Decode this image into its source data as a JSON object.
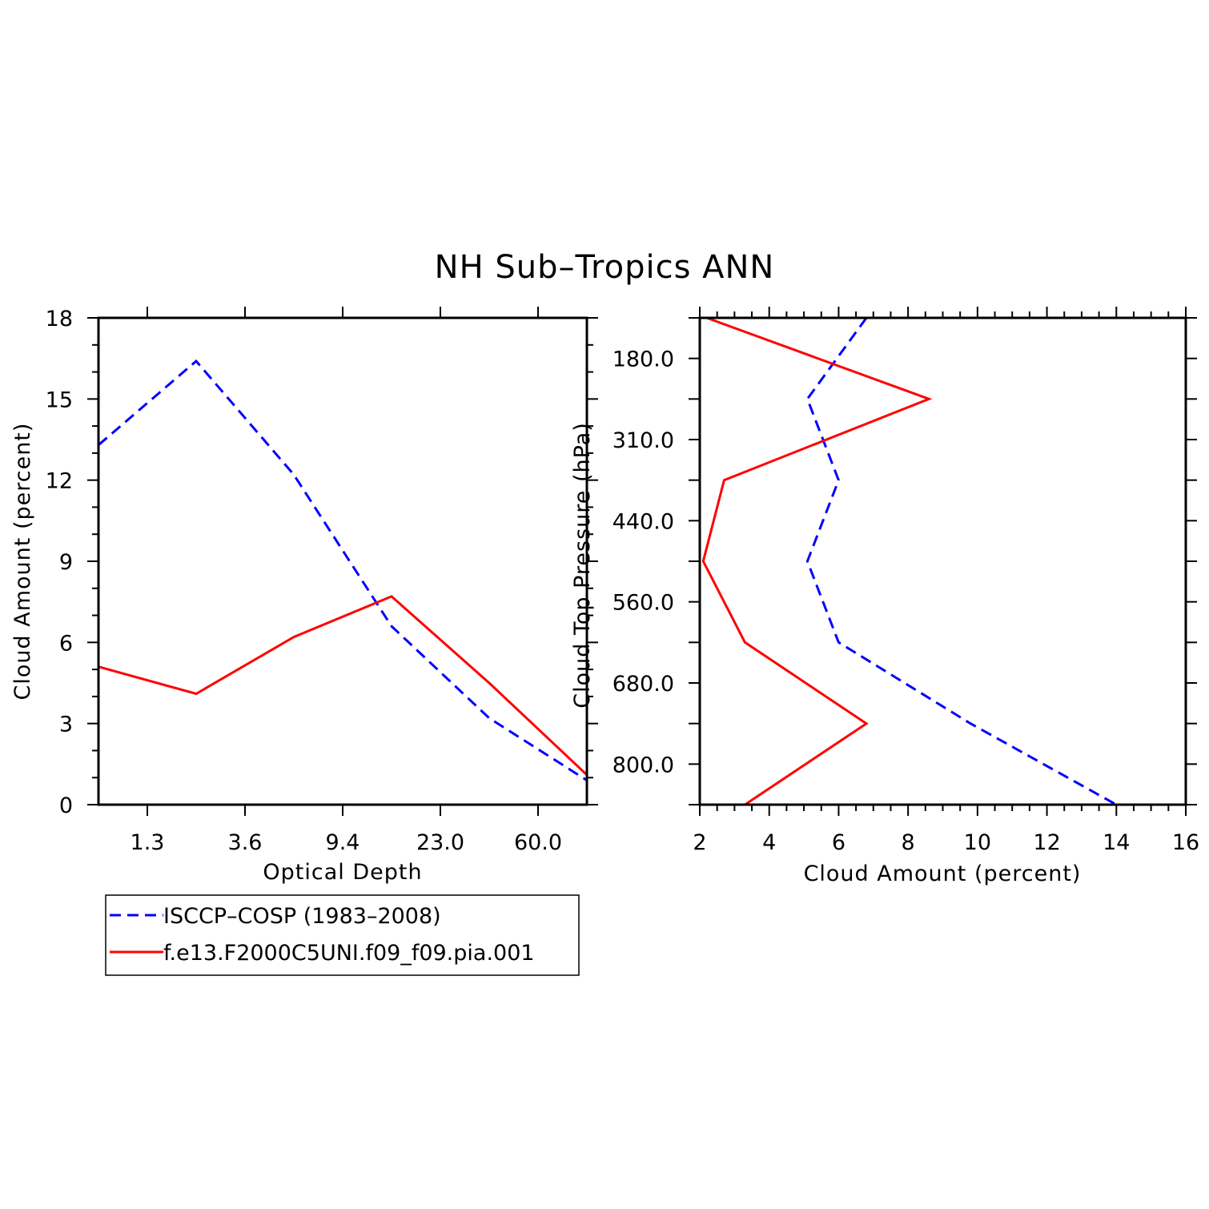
{
  "title": "NH Sub–Tropics ANN",
  "colors": {
    "obs": "#0000ff",
    "model": "#ff0000",
    "axis": "#000000"
  },
  "chart_data": [
    {
      "type": "line",
      "xlabel": "Optical Depth",
      "ylabel": "Cloud Amount (percent)",
      "x_tick_labels": [
        "1.3",
        "3.6",
        "9.4",
        "23.0",
        "60.0"
      ],
      "y_ticks": [
        0,
        3,
        6,
        9,
        12,
        15,
        18
      ],
      "ylim": [
        0,
        18
      ],
      "series": [
        {
          "name": "ISCCP–COSP (1983–2008)",
          "color": "#0000ff",
          "dash": "dashed",
          "values": [
            13.3,
            16.4,
            12.2,
            6.6,
            3.2,
            0.9
          ]
        },
        {
          "name": "f.e13.F2000C5UNI.f09_f09.pia.001",
          "color": "#ff0000",
          "dash": "solid",
          "values": [
            5.1,
            4.1,
            6.2,
            7.7,
            4.5,
            1.1
          ]
        }
      ]
    },
    {
      "type": "line",
      "xlabel": "Cloud Amount (percent)",
      "ylabel": "Cloud Top Pressure (hPa)",
      "xlim": [
        2,
        16
      ],
      "x_ticks": [
        2,
        4,
        6,
        8,
        10,
        12,
        14,
        16
      ],
      "y_tick_labels": [
        "180.0",
        "310.0",
        "440.0",
        "560.0",
        "680.0",
        "800.0"
      ],
      "series": [
        {
          "name": "ISCCP–COSP (1983–2008)",
          "color": "#0000ff",
          "dash": "dashed",
          "values": [
            6.8,
            5.1,
            6.0,
            5.1,
            6.0,
            9.8,
            14.0
          ]
        },
        {
          "name": "f.e13.F2000C5UNI.f09_f09.pia.001",
          "color": "#ff0000",
          "dash": "solid",
          "values": [
            2.2,
            8.6,
            2.7,
            2.1,
            3.3,
            6.8,
            3.3
          ]
        }
      ]
    }
  ],
  "legend": {
    "entries": [
      {
        "label": "ISCCP–COSP (1983–2008)",
        "color": "#0000ff",
        "dash": "dashed"
      },
      {
        "label": "f.e13.F2000C5UNI.f09_f09.pia.001",
        "color": "#ff0000",
        "dash": "solid"
      }
    ]
  }
}
